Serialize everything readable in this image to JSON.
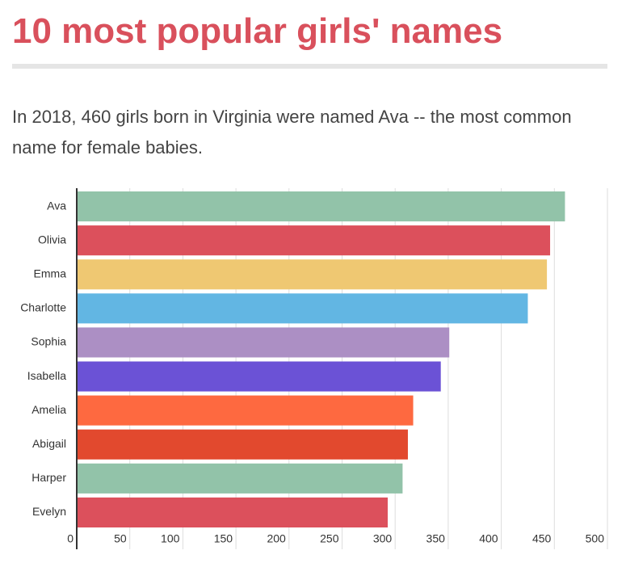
{
  "chart_data": {
    "type": "hbar",
    "title": "10 most popular girls' names",
    "subtitle": "In 2018, 460 girls born in Virginia were named Ava -- the most common name for female babies.",
    "categories": [
      "Ava",
      "Olivia",
      "Emma",
      "Charlotte",
      "Sophia",
      "Isabella",
      "Amelia",
      "Abigail",
      "Harper",
      "Evelyn"
    ],
    "values": [
      460,
      446,
      443,
      425,
      351,
      343,
      317,
      312,
      307,
      293
    ],
    "colors": [
      "#92c3a9",
      "#dc505c",
      "#efc872",
      "#62b6e3",
      "#ac8fc4",
      "#6b52d6",
      "#fe6940",
      "#e2492e",
      "#92c3a9",
      "#dc505c"
    ],
    "xlim": [
      0,
      500
    ],
    "xticks": [
      0,
      50,
      100,
      150,
      200,
      250,
      300,
      350,
      400,
      450,
      500
    ],
    "grid": true
  }
}
